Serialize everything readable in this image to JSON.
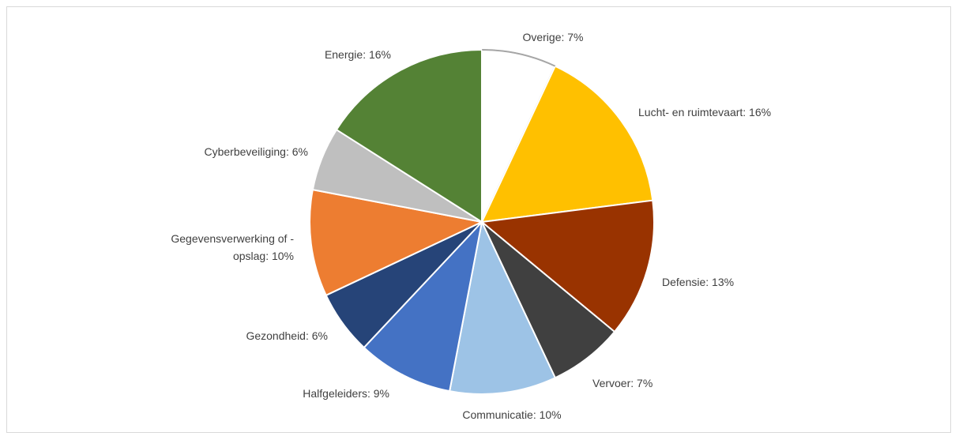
{
  "chart_data": {
    "type": "pie",
    "title": "",
    "slices": [
      {
        "label": "Overige: 7%",
        "value": 7,
        "color": "#ffffff"
      },
      {
        "label": "Lucht- en ruimtevaart: 16%",
        "value": 16,
        "color": "#ffc000"
      },
      {
        "label": "Defensie: 13%",
        "value": 13,
        "color": "#993300"
      },
      {
        "label": "Vervoer: 7%",
        "value": 7,
        "color": "#404040"
      },
      {
        "label": "Communicatie: 10%",
        "value": 10,
        "color": "#9dc3e6"
      },
      {
        "label": "Halfgeleiders: 9%",
        "value": 9,
        "color": "#4472c4"
      },
      {
        "label": "Gezondheid: 6%",
        "value": 6,
        "color": "#264478"
      },
      {
        "label": "Gegevensverwerking of - opslag: 10%",
        "value": 10,
        "color": "#ed7d31",
        "lines": [
          "Gegevensverwerking of -",
          "opslag: 10%"
        ]
      },
      {
        "label": "Cyberbeveiliging: 6%",
        "value": 6,
        "color": "#bfbfbf"
      },
      {
        "label": "Energie: 16%",
        "value": 16,
        "color": "#548235"
      }
    ],
    "legend": "none",
    "start_angle": "12 o'clock",
    "direction": "clockwise"
  }
}
